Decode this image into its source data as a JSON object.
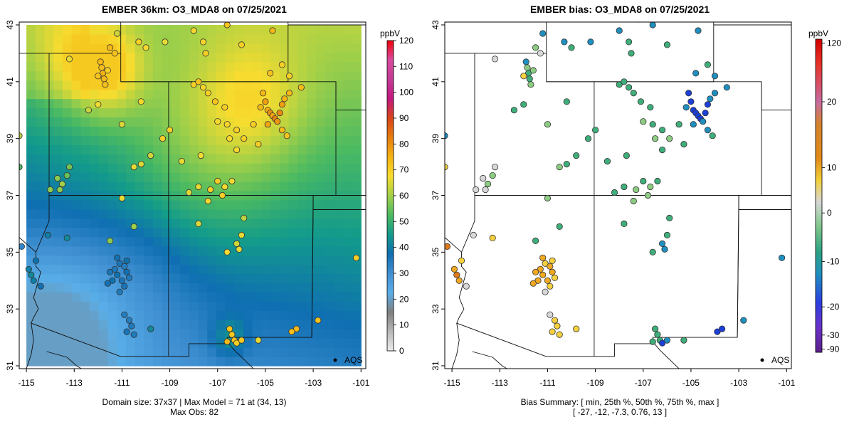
{
  "panels": [
    {
      "title": "EMBER 36km: O3_MDA8 on 07/25/2021",
      "x_ticks": [
        "-115",
        "-113",
        "-111",
        "-109",
        "-107",
        "-105",
        "-103",
        "-101"
      ],
      "y_ticks": [
        "43",
        "41",
        "39",
        "37",
        "35",
        "33",
        "31"
      ],
      "legend_marker": "AQS",
      "footer": [
        "Domain size: 37x37 | Max Model = 71 at (34, 13)",
        "Max Obs: 82"
      ],
      "colorbar": {
        "unit": "ppbV",
        "ticks": [
          "120",
          "110",
          "100",
          "90",
          "80",
          "70",
          "60",
          "50",
          "40",
          "30",
          "20",
          "10",
          "0"
        ]
      }
    },
    {
      "title": "EMBER bias: O3_MDA8 on 07/25/2021",
      "x_ticks": [
        "-115",
        "-113",
        "-111",
        "-109",
        "-107",
        "-105",
        "-103",
        "-101"
      ],
      "y_ticks": [
        "43",
        "41",
        "39",
        "37",
        "35",
        "33",
        "31"
      ],
      "legend_marker": "AQS",
      "footer": [
        "Bias Summary: [ min, 25th %, 50th %, 75th %, max ]",
        "[ -27,   -12,   -7.3,   0.76,   13 ]"
      ],
      "colorbar": {
        "unit": "ppbV",
        "ticks": [
          "120",
          "20",
          "10",
          "0",
          "-10",
          "-20",
          "-30",
          "-90"
        ]
      }
    }
  ],
  "map": {
    "lon_range": [
      -115.3,
      -100.8
    ],
    "lat_range": [
      30.9,
      43.1
    ],
    "model_extent": {
      "lon": [
        -115.0,
        -101.0
      ],
      "lat": [
        31.0,
        43.0
      ]
    },
    "conc_cmap": [
      "#ececec",
      "#b8b8b8",
      "#7f7f7f",
      "#5aaee8",
      "#3f8fd1",
      "#0f6fb2",
      "#139b8b",
      "#4cba61",
      "#a2d048",
      "#f7dc2f",
      "#f5b312",
      "#e67d10",
      "#d74519",
      "#c2187e",
      "#c33a95",
      "#d84a9e",
      "#f0000a"
    ],
    "bias_colors": {
      "strong_neg": "#1c3fd8",
      "neg": "#1f8fbf",
      "mod_neg": "#3fae7a",
      "small_neg": "#8ccc82",
      "near0": "#d8d8d8",
      "pos": "#f4d13d",
      "mod_pos": "#f0a820",
      "strong_pos": "#e07a18"
    },
    "colors": {
      "border": "#111111",
      "station_outline": "#333333",
      "background": "#ffffff"
    }
  }
}
